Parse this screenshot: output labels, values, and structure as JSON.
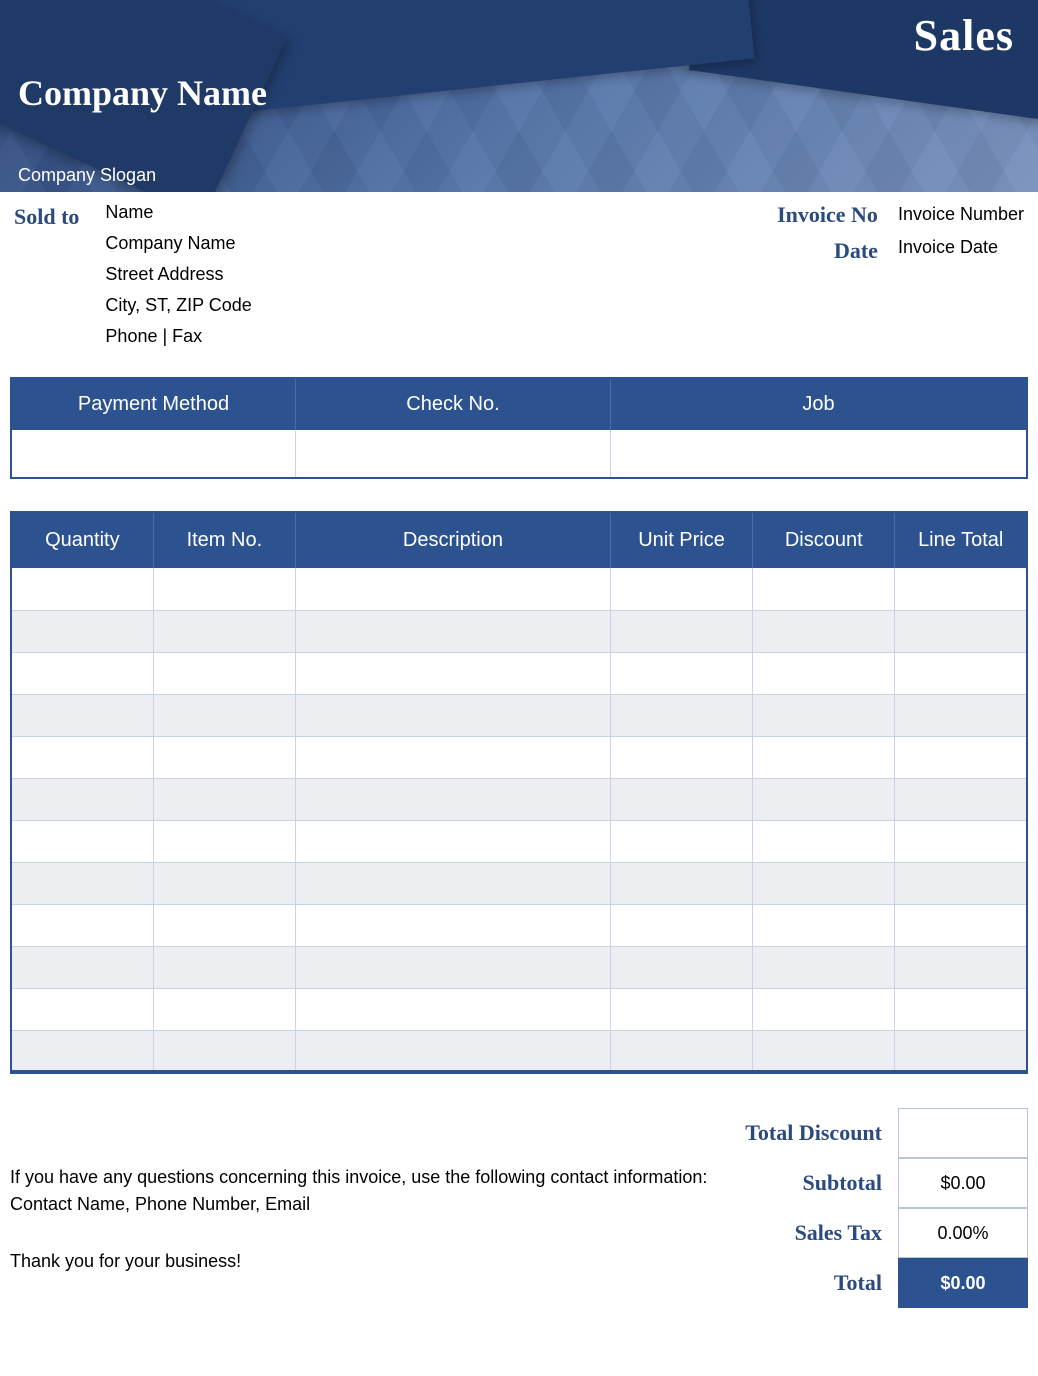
{
  "header": {
    "sales_label": "Sales",
    "company_name": "Company Name",
    "company_slogan": "Company Slogan",
    "colors": {
      "primary": "#2c5390",
      "banner_dark": "#1e3865",
      "text_accent": "#2b4a7f",
      "row_alt": "#eceef2",
      "border_light": "#c9d3e8"
    }
  },
  "sold_to": {
    "label": "Sold to",
    "name": "Name",
    "company": "Company Name",
    "street": "Street Address",
    "city_line": "City, ST,  ZIP Code",
    "phone_fax": "Phone | Fax"
  },
  "invoice": {
    "no_label": "Invoice No",
    "no_value": "Invoice Number",
    "date_label": "Date",
    "date_value": "Invoice Date"
  },
  "payment_table": {
    "columns": [
      "Payment Method",
      "Check No.",
      "Job"
    ],
    "col_widths_pct": [
      28,
      31,
      41
    ],
    "row": [
      "",
      "",
      ""
    ]
  },
  "items_table": {
    "columns": [
      "Quantity",
      "Item No.",
      "Description",
      "Unit Price",
      "Discount",
      "Line Total"
    ],
    "col_widths_pct": [
      14,
      14,
      31,
      14,
      14,
      13
    ],
    "row_count": 12
  },
  "totals": {
    "discount_label": "Total Discount",
    "discount_value": "",
    "subtotal_label": "Subtotal",
    "subtotal_value": "$0.00",
    "tax_label": "Sales Tax",
    "tax_value": "0.00%",
    "total_label": "Total",
    "total_value": "$0.00"
  },
  "footer": {
    "line1": "If you have any questions concerning this invoice, use the following contact information:",
    "line2": "Contact Name, Phone Number, Email",
    "thanks": "Thank you for your business!"
  }
}
